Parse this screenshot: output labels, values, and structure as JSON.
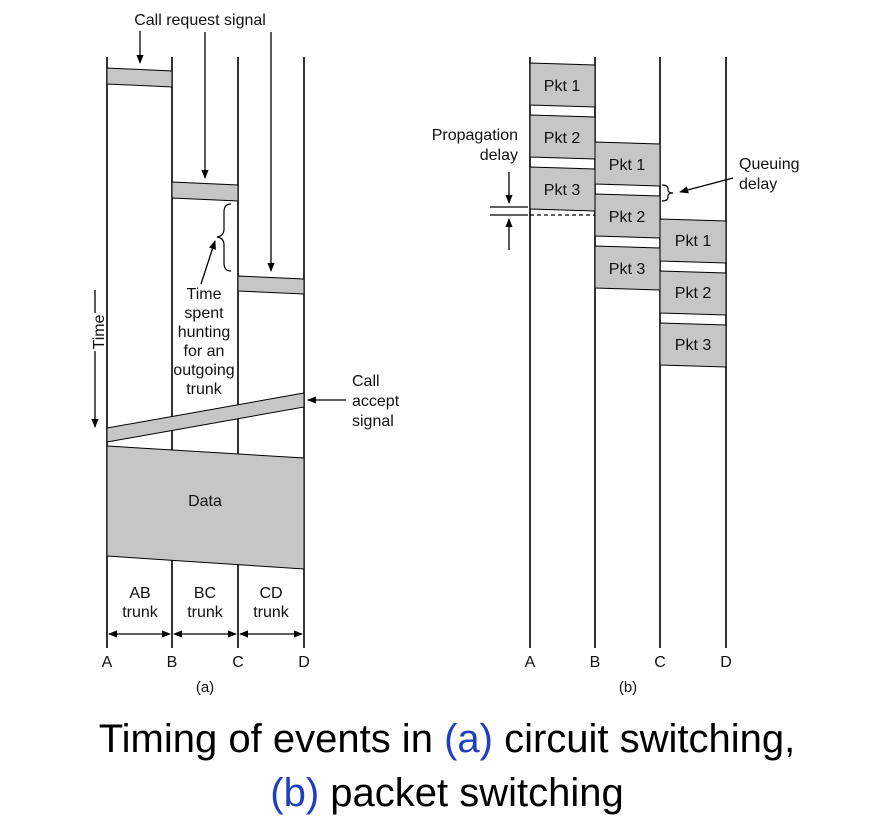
{
  "colors": {
    "box_fill": "#c6c6c6",
    "line": "#000000",
    "caption_highlight": "#1f3fbf"
  },
  "circuit": {
    "call_request": "Call request signal",
    "time_spent": [
      "Time",
      "spent",
      "hunting",
      "for an",
      "outgoing",
      "trunk"
    ],
    "time_axis": "Time",
    "call_accept": [
      "Call",
      "accept",
      "signal"
    ],
    "data": "Data",
    "trunks": [
      {
        "line1": "AB",
        "line2": "trunk"
      },
      {
        "line1": "BC",
        "line2": "trunk"
      },
      {
        "line1": "CD",
        "line2": "trunk"
      }
    ],
    "nodes": [
      "A",
      "B",
      "C",
      "D"
    ],
    "panel_label": "(a)"
  },
  "packet": {
    "propagation_delay": [
      "Propagation",
      "delay"
    ],
    "queuing_delay": [
      "Queuing",
      "delay"
    ],
    "hop_ab": [
      "Pkt 1",
      "Pkt 2",
      "Pkt 3"
    ],
    "hop_bc": [
      "Pkt 1",
      "Pkt 2",
      "Pkt 3"
    ],
    "hop_cd": [
      "Pkt 1",
      "Pkt 2",
      "Pkt 3"
    ],
    "nodes": [
      "A",
      "B",
      "C",
      "D"
    ],
    "panel_label": "(b)"
  },
  "caption": {
    "line1_pre": "Timing of events in ",
    "line1_hl": "(a)",
    "line1_post": " circuit switching,",
    "line2_hl": "(b)",
    "line2_post": " packet switching"
  }
}
